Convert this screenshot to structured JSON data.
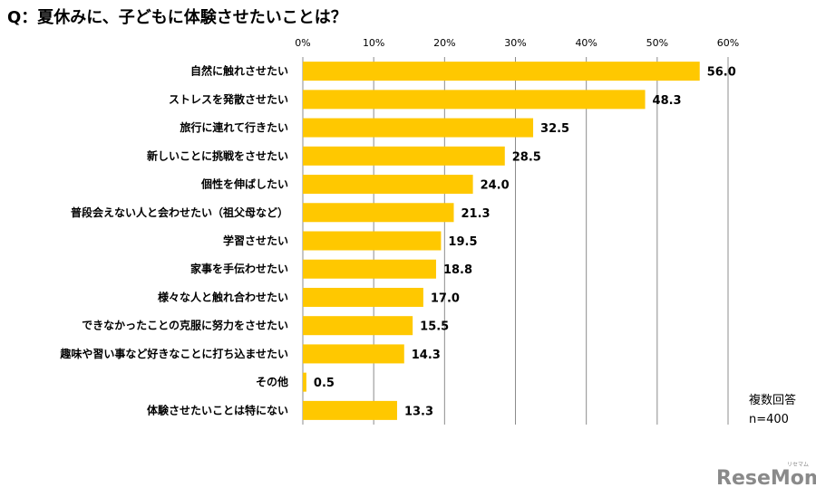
{
  "chart_data": {
    "type": "bar",
    "orientation": "horizontal",
    "title": "Q：夏休みに、子どもに体験させたいことは？",
    "categories": [
      "自然に触れさせたい",
      "ストレスを発散させたい",
      "旅行に連れて行きたい",
      "新しいことに挑戦をさせたい",
      "個性を伸ばしたい",
      "普段会えない人と会わせたい（祖父母など）",
      "学習させたい",
      "家事を手伝わせたい",
      "様々な人と触れ合わせたい",
      "できなかったことの克服に努力をさせたい",
      "趣味や習い事など好きなことに打ち込ませたい",
      "その他",
      "体験させたいことは特にない"
    ],
    "values": [
      56.0,
      48.3,
      32.5,
      28.5,
      24.0,
      21.3,
      19.5,
      18.8,
      17.0,
      15.5,
      14.3,
      0.5,
      13.3
    ],
    "value_labels": [
      "56.0",
      "48.3",
      "32.5",
      "28.5",
      "24.0",
      "21.3",
      "19.5",
      "18.8",
      "17.0",
      "15.5",
      "14.3",
      "0.5",
      "13.3"
    ],
    "xlim": [
      0,
      60
    ],
    "xticks": [
      "0%",
      "10%",
      "20%",
      "30%",
      "40%",
      "50%",
      "60%"
    ],
    "xaxis_position": "top",
    "grid": true,
    "bar_color": "#FFC800",
    "grid_color": "#8c8c8c"
  },
  "notes": {
    "multiple": "複数回答",
    "sample": "n=400"
  },
  "logo": {
    "text": "ReseMom",
    "small": "リセマム"
  }
}
